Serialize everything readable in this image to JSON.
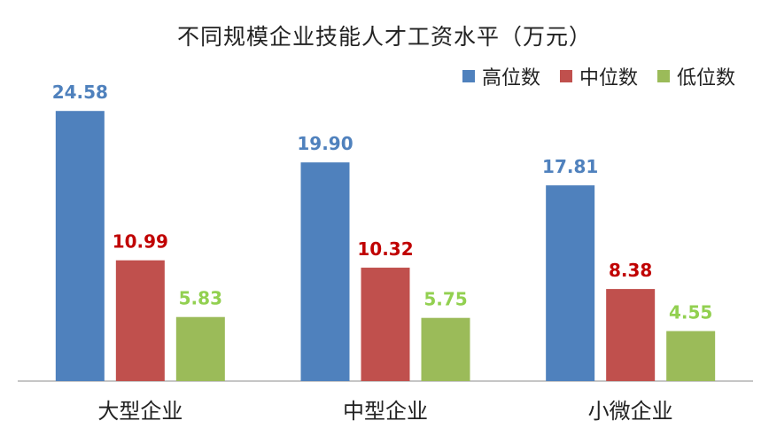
{
  "chart_data": {
    "type": "bar",
    "title": "不同规模企业技能人才工资水平（万元）",
    "categories": [
      "大型企业",
      "中型企业",
      "小微企业"
    ],
    "series": [
      {
        "name": "高位数",
        "color": "#4F81BD",
        "label_color": "#4F81BD",
        "values": [
          24.58,
          19.9,
          17.81
        ]
      },
      {
        "name": "中位数",
        "color": "#C0504D",
        "label_color": "#C00000",
        "values": [
          10.99,
          10.32,
          8.38
        ]
      },
      {
        "name": "低位数",
        "color": "#9BBB59",
        "label_color": "#92D050",
        "values": [
          5.83,
          5.75,
          4.55
        ]
      }
    ],
    "ylim": [
      0,
      25
    ],
    "grid": false,
    "legend_position": "top-right",
    "xlabel": "",
    "ylabel": ""
  }
}
